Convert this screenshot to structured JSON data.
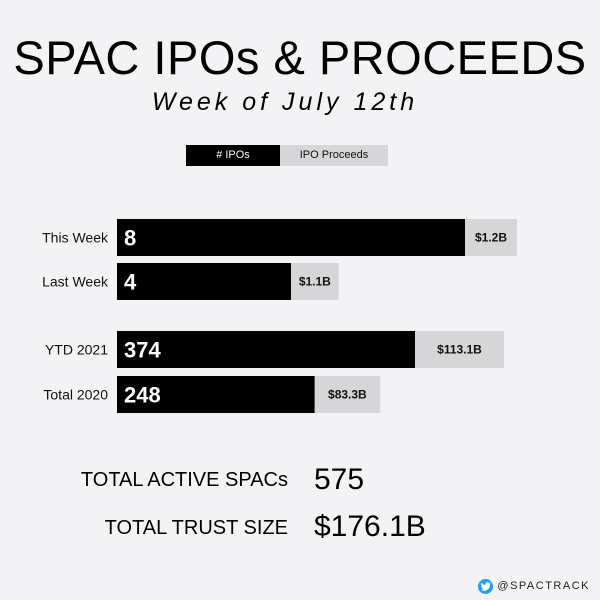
{
  "title": "SPAC IPOs & PROCEEDS",
  "subtitle": "Week of July 12th",
  "legend": {
    "ipos": "# IPOs",
    "proceeds": "IPO Proceeds"
  },
  "colors": {
    "ipos": "#000000",
    "proceeds": "#d6d6d8",
    "background": "#f3f3f6"
  },
  "chart_data": {
    "type": "bar",
    "orientation": "horizontal",
    "categories": [
      "This Week",
      "Last Week",
      "YTD 2021",
      "Total 2020"
    ],
    "series": [
      {
        "name": "# IPOs",
        "values": [
          8,
          4,
          374,
          248
        ],
        "labels": [
          "8",
          "4",
          "374",
          "248"
        ]
      },
      {
        "name": "IPO Proceeds",
        "values": [
          1.2,
          1.1,
          113.1,
          83.3
        ],
        "labels": [
          "$1.2B",
          "$1.1B",
          "$113.1B",
          "$83.3B"
        ]
      }
    ],
    "legend": "top-center",
    "grid": false
  },
  "summary": [
    {
      "label": "TOTAL ACTIVE SPACs",
      "value": "575"
    },
    {
      "label": "TOTAL TRUST SIZE",
      "value": "$176.1B"
    }
  ],
  "footer": {
    "handle": "@SPACTRACK",
    "icon": "twitter-bird-icon"
  }
}
